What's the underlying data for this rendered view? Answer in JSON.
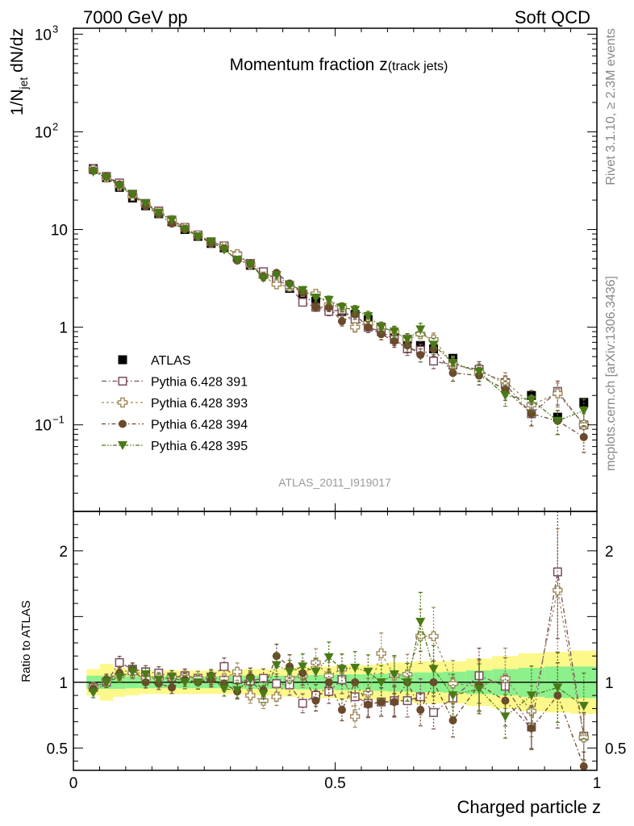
{
  "header": {
    "left": "7000 GeV pp",
    "right": "Soft QCD"
  },
  "side": {
    "rivet": "Rivet 3.1.10, ≥ 2.3M events",
    "mcplots": "mcplots.cern.ch [arXiv:1306.3436]"
  },
  "chart_data": [
    {
      "type": "scatter",
      "title": "Momentum fraction z",
      "title_sub": "(track jets)",
      "ylabel": "1/N_jet dN/dz",
      "ylabel_parts": {
        "main": "1/N",
        "sub": "jet",
        "rest": " dN/dz"
      },
      "yscale": "log",
      "ylim": [
        0.013,
        1150
      ],
      "xlim": [
        0,
        1
      ],
      "yticks": [
        {
          "v": 0.1,
          "label": "10",
          "sup": "−1"
        },
        {
          "v": 1,
          "label": "1",
          "sup": ""
        },
        {
          "v": 10,
          "label": "10",
          "sup": ""
        },
        {
          "v": 100,
          "label": "10",
          "sup": "2"
        },
        {
          "v": 1000,
          "label": "10",
          "sup": "3"
        }
      ],
      "watermark": "ATLAS_2011_I919017",
      "legend_position": "left-middle",
      "x": [
        0.038,
        0.063,
        0.088,
        0.113,
        0.138,
        0.163,
        0.188,
        0.213,
        0.238,
        0.263,
        0.288,
        0.313,
        0.338,
        0.363,
        0.388,
        0.413,
        0.438,
        0.463,
        0.488,
        0.513,
        0.538,
        0.563,
        0.588,
        0.613,
        0.638,
        0.663,
        0.688,
        0.725,
        0.775,
        0.825,
        0.875,
        0.925,
        0.975
      ],
      "series": [
        {
          "name": "ATLAS",
          "color": "#000000",
          "marker": "filled-square",
          "values": [
            42,
            34,
            27,
            21,
            17.5,
            14.5,
            12,
            10,
            8.5,
            7.2,
            6.5,
            5.2,
            4.3,
            3.5,
            3.0,
            2.5,
            2.15,
            1.85,
            1.6,
            1.45,
            1.35,
            1.2,
            1.0,
            0.85,
            0.75,
            0.65,
            0.6,
            0.48,
            0.37,
            0.27,
            0.2,
            0.12,
            0.17
          ]
        },
        {
          "name": "Pythia 6.428 391",
          "color": "#7a4f5f",
          "marker": "open-square",
          "values": [
            41,
            35,
            30,
            23,
            18.5,
            15.5,
            12.5,
            10.5,
            8.8,
            7.5,
            6.8,
            5.4,
            4.5,
            3.7,
            3.1,
            2.6,
            1.8,
            1.6,
            1.45,
            1.5,
            1.2,
            1.0,
            0.9,
            0.75,
            0.6,
            0.58,
            0.45,
            0.41,
            0.37,
            0.26,
            0.13,
            0.22,
            0.1
          ]
        },
        {
          "name": "Pythia 6.428 393",
          "color": "#a08a5a",
          "marker": "open-cross",
          "values": [
            41,
            34,
            28,
            22,
            18,
            15,
            12.5,
            10.4,
            8.7,
            7.4,
            6.7,
            5.6,
            4.4,
            3.3,
            2.75,
            2.6,
            2.3,
            2.2,
            1.7,
            1.6,
            1.0,
            1.1,
            1.0,
            0.9,
            0.75,
            0.85,
            0.75,
            0.42,
            0.35,
            0.28,
            0.16,
            0.21,
            0.1
          ]
        },
        {
          "name": "Pythia 6.428 394",
          "color": "#6b4a2c",
          "marker": "filled-circle",
          "values": [
            40,
            35,
            29,
            23,
            17.5,
            14.3,
            11.5,
            10.2,
            8.5,
            7.3,
            6.4,
            4.8,
            4.5,
            3.3,
            3.6,
            2.8,
            2.3,
            1.6,
            1.6,
            1.15,
            1.35,
            1.0,
            0.85,
            0.72,
            0.65,
            0.52,
            0.6,
            0.34,
            0.32,
            0.23,
            0.13,
            0.11,
            0.075
          ]
        },
        {
          "name": "Pythia 6.428 395",
          "color": "#4a7a18",
          "marker": "filled-triangle-down",
          "values": [
            39,
            34,
            28,
            23,
            18.5,
            14.8,
            12.5,
            10,
            8.5,
            7.5,
            6.2,
            4.9,
            4.4,
            3.2,
            3.4,
            2.7,
            2.4,
            2.0,
            1.9,
            1.6,
            1.5,
            1.3,
            1.0,
            0.9,
            0.75,
            0.95,
            0.66,
            0.43,
            0.35,
            0.2,
            0.18,
            0.11,
            0.14
          ]
        }
      ]
    },
    {
      "type": "scatter",
      "ylabel": "Ratio to ATLAS",
      "xlabel": "Charged particle z",
      "xlim": [
        0,
        1
      ],
      "ylim": [
        0.33,
        2.3
      ],
      "xticks": [
        {
          "v": 0,
          "label": "0"
        },
        {
          "v": 0.5,
          "label": "0.5"
        },
        {
          "v": 1,
          "label": "1"
        }
      ],
      "yticks": [
        {
          "v": 0.5,
          "label": "0.5"
        },
        {
          "v": 1,
          "label": "1"
        },
        {
          "v": 2,
          "label": "2"
        }
      ],
      "band_inner": [
        0.05,
        0.05,
        0.05,
        0.045,
        0.045,
        0.045,
        0.045,
        0.045,
        0.045,
        0.045,
        0.045,
        0.05,
        0.05,
        0.05,
        0.05,
        0.05,
        0.055,
        0.055,
        0.055,
        0.06,
        0.06,
        0.06,
        0.065,
        0.07,
        0.07,
        0.075,
        0.075,
        0.08,
        0.09,
        0.1,
        0.11,
        0.12,
        0.12
      ],
      "band_outer": [
        0.1,
        0.14,
        0.11,
        0.1,
        0.09,
        0.09,
        0.09,
        0.09,
        0.09,
        0.09,
        0.09,
        0.09,
        0.1,
        0.1,
        0.1,
        0.11,
        0.12,
        0.12,
        0.12,
        0.13,
        0.13,
        0.13,
        0.14,
        0.15,
        0.15,
        0.16,
        0.16,
        0.16,
        0.18,
        0.2,
        0.22,
        0.23,
        0.24
      ],
      "series": [
        {
          "name": "Pythia 6.428 391",
          "values": [
            0.96,
            1.0,
            1.15,
            1.1,
            1.08,
            1.07,
            1.04,
            1.05,
            1.03,
            1.04,
            1.12,
            1.02,
            1.01,
            1.03,
            0.99,
            0.98,
            0.84,
            0.9,
            0.93,
            1.02,
            0.89,
            0.84,
            0.85,
            0.86,
            0.86,
            0.89,
            0.77,
            0.88,
            1.05,
            0.97,
            0.66,
            1.84,
            0.59
          ]
        },
        {
          "name": "Pythia 6.428 393",
          "values": [
            0.96,
            1.01,
            1.05,
            1.07,
            1.03,
            1.03,
            1.04,
            1.04,
            1.03,
            1.03,
            1.03,
            1.08,
            0.9,
            0.86,
            0.89,
            1.03,
            1.05,
            1.15,
            1.05,
            1.1,
            0.74,
            0.92,
            1.22,
            1.05,
            1.06,
            1.35,
            1.35,
            0.99,
            0.97,
            1.03,
            0.78,
            1.7,
            0.58
          ]
        },
        {
          "name": "Pythia 6.428 394",
          "values": [
            0.95,
            1.02,
            1.07,
            1.1,
            1.0,
            0.99,
            0.96,
            1.02,
            1.0,
            1.02,
            0.99,
            0.93,
            1.04,
            0.94,
            1.2,
            1.12,
            1.07,
            0.86,
            1.0,
            0.79,
            1.0,
            0.83,
            0.85,
            0.85,
            1.0,
            0.79,
            1.0,
            0.71,
            0.98,
            0.86,
            0.65,
            0.9,
            0.36
          ]
        },
        {
          "name": "Pythia 6.428 395",
          "values": [
            0.92,
            1.0,
            1.04,
            1.08,
            1.06,
            1.02,
            1.04,
            1.0,
            1.0,
            1.04,
            0.95,
            0.94,
            1.02,
            0.91,
            1.13,
            1.08,
            1.12,
            1.08,
            1.19,
            1.1,
            1.11,
            1.08,
            1.0,
            1.06,
            1.0,
            1.46,
            1.1,
            0.9,
            0.95,
            0.74,
            0.9,
            0.96,
            0.82
          ]
        }
      ]
    }
  ]
}
